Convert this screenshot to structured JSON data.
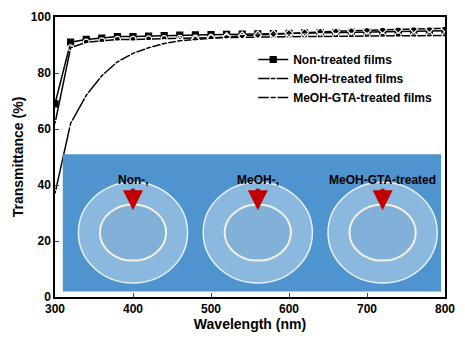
{
  "chart_data": {
    "type": "line",
    "x_label": "Wavelength (nm)",
    "y_label": "Transmittance (%)",
    "x": [
      300,
      320,
      340,
      360,
      380,
      400,
      420,
      440,
      460,
      480,
      500,
      520,
      540,
      560,
      580,
      600,
      620,
      640,
      660,
      680,
      700,
      720,
      740,
      760,
      780,
      800
    ],
    "series": [
      {
        "name": "Non-treated films",
        "color": "#000000",
        "marker": "square",
        "values": [
          69,
          91,
          92,
          92.5,
          93,
          93,
          93.2,
          93.4,
          93.5,
          93.6,
          93.7,
          93.8,
          93.9,
          94,
          94.1,
          94.2,
          94.3,
          94.4,
          94.5,
          94.6,
          94.7,
          94.8,
          94.9,
          95,
          95,
          95.1
        ]
      },
      {
        "name": "MeOH-treated films",
        "color": "#000000",
        "marker": "circle-open",
        "values": [
          62,
          89,
          91,
          91.5,
          92,
          92,
          92.2,
          92.3,
          92.4,
          92.5,
          92.6,
          92.6,
          92.7,
          92.8,
          92.8,
          92.9,
          93,
          93,
          93.1,
          93.1,
          93.2,
          93.2,
          93.3,
          93.3,
          93.4,
          93.4
        ]
      },
      {
        "name": "MeOH-GTA-treated films",
        "color": "#000000",
        "marker": "diamond-open",
        "values": [
          37,
          62,
          72,
          79,
          84,
          87,
          89,
          90.5,
          91.5,
          92,
          92.5,
          93,
          93.3,
          93.6,
          93.9,
          94.2,
          94.5,
          94.7,
          94.9,
          95.1,
          95.3,
          95.5,
          95.6,
          95.7,
          95.8,
          96
        ]
      }
    ],
    "xlim": [
      300,
      800
    ],
    "xticks": [
      300,
      400,
      500,
      600,
      700,
      800
    ],
    "ylim": [
      0,
      100
    ],
    "yticks": [
      0,
      20,
      40,
      60,
      80,
      100
    ],
    "grid": false,
    "legend": "upper right",
    "annotations": [
      "Non-,",
      "MeOH-,",
      "MeOH-GTA-treated"
    ]
  }
}
